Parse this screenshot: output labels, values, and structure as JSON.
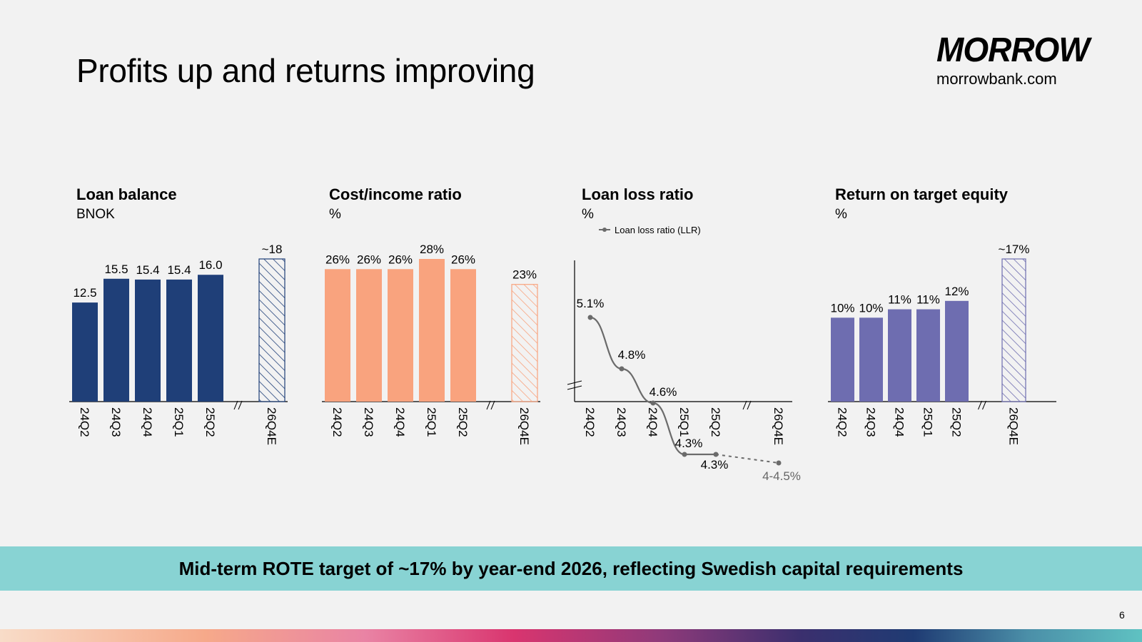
{
  "title": "Profits up and returns improving",
  "brand": {
    "logo_text": "MORROW",
    "url": "morrowbank.com"
  },
  "banner": "Mid-term ROTE target of ~17% by year-end 2026, reflecting Swedish capital requirements",
  "page_number": "6",
  "colors": {
    "navy": "#1f3f78",
    "salmon": "#f9a37e",
    "grey": "#6b6b6b",
    "purple": "#6e6db0",
    "banner": "#88d3d3"
  },
  "chart_data": [
    {
      "type": "bar",
      "title": "Loan balance",
      "ylabel": "BNOK",
      "categories": [
        "24Q2",
        "24Q3",
        "24Q4",
        "25Q1",
        "25Q2",
        "26Q4E"
      ],
      "values": [
        12.5,
        15.5,
        15.4,
        15.4,
        16.0,
        18
      ],
      "labels": [
        "12.5",
        "15.5",
        "15.4",
        "15.4",
        "16.0",
        "~18"
      ],
      "estimate_index": 5,
      "ylim": [
        0,
        18
      ]
    },
    {
      "type": "bar",
      "title": "Cost/income ratio",
      "ylabel": "%",
      "categories": [
        "24Q2",
        "24Q3",
        "24Q4",
        "25Q1",
        "25Q2",
        "26Q4E"
      ],
      "values": [
        26,
        26,
        26,
        28,
        26,
        23
      ],
      "labels": [
        "26%",
        "26%",
        "26%",
        "28%",
        "26%",
        "23%"
      ],
      "estimate_index": 5,
      "ylim": [
        0,
        28
      ]
    },
    {
      "type": "line",
      "title": "Loan loss ratio",
      "ylabel": "%",
      "legend": "Loan loss ratio (LLR)",
      "categories": [
        "24Q2",
        "24Q3",
        "24Q4",
        "25Q1",
        "25Q2",
        "26Q4E"
      ],
      "values": [
        5.1,
        4.8,
        4.6,
        4.3,
        4.3,
        4.25
      ],
      "labels": [
        "5.1%",
        "4.8%",
        "4.6%",
        "4.3%",
        "4.3%",
        "4-4.5%"
      ],
      "estimate_index": 5,
      "ylim": [
        3.5,
        5.3
      ]
    },
    {
      "type": "bar",
      "title": "Return on target equity",
      "ylabel": "%",
      "categories": [
        "24Q2",
        "24Q3",
        "24Q4",
        "25Q1",
        "25Q2",
        "26Q4E"
      ],
      "values": [
        10,
        10,
        11,
        11,
        12,
        17
      ],
      "labels": [
        "10%",
        "10%",
        "11%",
        "11%",
        "12%",
        "~17%"
      ],
      "estimate_index": 5,
      "ylim": [
        0,
        17
      ]
    }
  ]
}
